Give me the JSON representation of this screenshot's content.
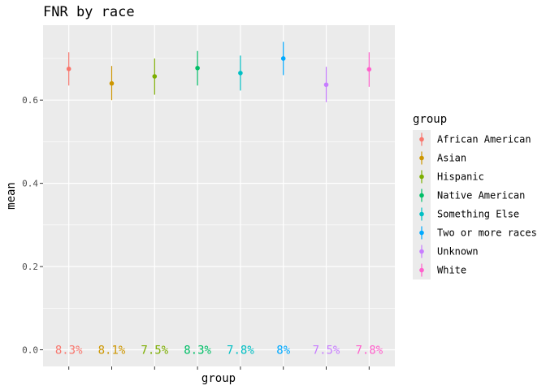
{
  "chart_data": {
    "type": "errorbar",
    "title": "FNR by race",
    "xlabel": "group",
    "ylabel": "mean",
    "ylim": [
      -0.04,
      0.78
    ],
    "yticks": [
      0.0,
      0.2,
      0.4,
      0.6
    ],
    "ytick_labels": [
      "0.0",
      "0.2",
      "0.4",
      "0.6"
    ],
    "grid": true,
    "legend": {
      "title": "group",
      "position": "right"
    },
    "categories": [
      "African American",
      "Asian",
      "Hispanic",
      "Native American",
      "Something Else",
      "Two or more races",
      "Unknown",
      "White"
    ],
    "series": [
      {
        "name": "African American",
        "color": "#F8766D",
        "mean": 0.675,
        "lower": 0.635,
        "upper": 0.715,
        "label": "8.3%"
      },
      {
        "name": "Asian",
        "color": "#CD9600",
        "mean": 0.64,
        "lower": 0.6,
        "upper": 0.682,
        "label": "8.1%"
      },
      {
        "name": "Hispanic",
        "color": "#7CAE00",
        "mean": 0.657,
        "lower": 0.613,
        "upper": 0.7,
        "label": "7.5%"
      },
      {
        "name": "Native American",
        "color": "#00BE67",
        "mean": 0.677,
        "lower": 0.635,
        "upper": 0.718,
        "label": "8.3%"
      },
      {
        "name": "Something Else",
        "color": "#00BFC4",
        "mean": 0.665,
        "lower": 0.623,
        "upper": 0.707,
        "label": "7.8%"
      },
      {
        "name": "Two or more races",
        "color": "#00A9FF",
        "mean": 0.7,
        "lower": 0.66,
        "upper": 0.74,
        "label": "8%"
      },
      {
        "name": "Unknown",
        "color": "#C77CFF",
        "mean": 0.637,
        "lower": 0.595,
        "upper": 0.68,
        "label": "7.5%"
      },
      {
        "name": "White",
        "color": "#FF61CC",
        "mean": 0.674,
        "lower": 0.632,
        "upper": 0.715,
        "label": "7.8%"
      }
    ]
  }
}
